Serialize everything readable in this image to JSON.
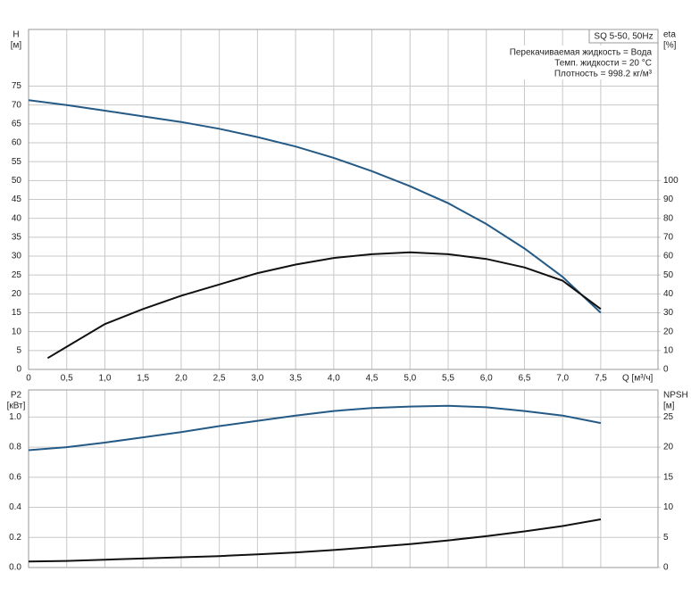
{
  "chart_data": [
    {
      "type": "line",
      "y_label": "H",
      "y_unit": "[м]",
      "y2_label": "eta",
      "y2_unit": "[%]",
      "x_label": "Q [м³/ч]",
      "box_title": "SQ 5-50, 50Hz",
      "notes": [
        "Перекачиваемая жидкость = Вода",
        "Темп. жидкости = 20 °C",
        "Плотность = 998.2 кг/м³"
      ],
      "xlim": [
        0,
        8.25
      ],
      "xticks": [
        0,
        {
          "value": 0.5,
          "label": "0,5"
        },
        {
          "value": 1.0,
          "label": "1,0"
        },
        {
          "value": 1.5,
          "label": "1,5"
        },
        {
          "value": 2.0,
          "label": "2,0"
        },
        {
          "value": 2.5,
          "label": "2,5"
        },
        {
          "value": 3.0,
          "label": "3,0"
        },
        {
          "value": 3.5,
          "label": "3,5"
        },
        {
          "value": 4.0,
          "label": "4,0"
        },
        {
          "value": 4.5,
          "label": "4,5"
        },
        {
          "value": 5.0,
          "label": "5,0"
        },
        {
          "value": 5.5,
          "label": "5,5"
        },
        {
          "value": 6.0,
          "label": "6,0"
        },
        {
          "value": 6.5,
          "label": "6,5"
        },
        {
          "value": 7.0,
          "label": "7,0"
        },
        {
          "value": 7.5,
          "label": "7,5"
        }
      ],
      "xtick_labels": true,
      "ylim": [
        0,
        90
      ],
      "yticks": [
        0,
        5,
        10,
        15,
        20,
        25,
        30,
        35,
        40,
        45,
        50,
        55,
        60,
        65,
        70,
        75
      ],
      "y2lim": [
        0,
        180
      ],
      "y2ticks": [
        0,
        10,
        20,
        30,
        40,
        50,
        60,
        70,
        80,
        90,
        100
      ],
      "grid": true,
      "series": [
        {
          "color": "#245a85",
          "x": [
            0,
            0.5,
            1.0,
            1.5,
            2.0,
            2.5,
            3.0,
            3.5,
            4.0,
            4.5,
            5.0,
            5.5,
            6.0,
            6.5,
            7.0,
            7.5
          ],
          "values": [
            71.3,
            70,
            68.5,
            67,
            65.5,
            63.7,
            61.5,
            59,
            56,
            52.5,
            48.5,
            44,
            38.5,
            32,
            24.5,
            15
          ]
        },
        {
          "color": "#111111",
          "axis": "y2",
          "x": [
            0.25,
            0.5,
            1.0,
            1.5,
            2.0,
            2.5,
            3.0,
            3.5,
            4.0,
            4.5,
            5.0,
            5.5,
            6.0,
            6.5,
            7.0,
            7.5
          ],
          "values": [
            6,
            12,
            24,
            32,
            39,
            45,
            51,
            55.5,
            59,
            61,
            62,
            61,
            58.5,
            54,
            47,
            32
          ]
        }
      ]
    },
    {
      "type": "line",
      "y_label": "P2",
      "y_unit": "[кВт]",
      "y2_label": "NPSH",
      "y2_unit": "[м]",
      "xlim": [
        0,
        8.25
      ],
      "xticks": [
        0,
        0.5,
        1.0,
        1.5,
        2.0,
        2.5,
        3.0,
        3.5,
        4.0,
        4.5,
        5.0,
        5.5,
        6.0,
        6.5,
        7.0,
        7.5
      ],
      "xtick_labels": false,
      "ylim": [
        0,
        1.18
      ],
      "yticks": [
        {
          "value": 0,
          "label": "0.0"
        },
        0.2,
        0.4,
        0.6,
        0.8,
        {
          "value": 1.0,
          "label": "1.0"
        }
      ],
      "y2lim": [
        0,
        29.5
      ],
      "y2ticks": [
        0,
        5,
        10,
        15,
        20,
        25
      ],
      "grid": true,
      "series": [
        {
          "color": "#245a85",
          "x": [
            0,
            0.5,
            1.0,
            1.5,
            2.0,
            2.5,
            3.0,
            3.5,
            4.0,
            4.5,
            5.0,
            5.5,
            6.0,
            6.5,
            7.0,
            7.5
          ],
          "values": [
            0.78,
            0.8,
            0.83,
            0.865,
            0.9,
            0.94,
            0.975,
            1.01,
            1.04,
            1.06,
            1.07,
            1.075,
            1.065,
            1.04,
            1.01,
            0.96
          ]
        },
        {
          "color": "#111111",
          "axis": "y2",
          "x": [
            0,
            0.5,
            1.0,
            1.5,
            2.0,
            2.5,
            3.0,
            3.5,
            4.0,
            4.5,
            5.0,
            5.5,
            6.0,
            6.5,
            7.0,
            7.5
          ],
          "values": [
            1.0,
            1.1,
            1.3,
            1.5,
            1.7,
            1.9,
            2.2,
            2.5,
            2.9,
            3.4,
            3.9,
            4.5,
            5.2,
            6.0,
            6.9,
            8.0
          ]
        }
      ]
    }
  ]
}
